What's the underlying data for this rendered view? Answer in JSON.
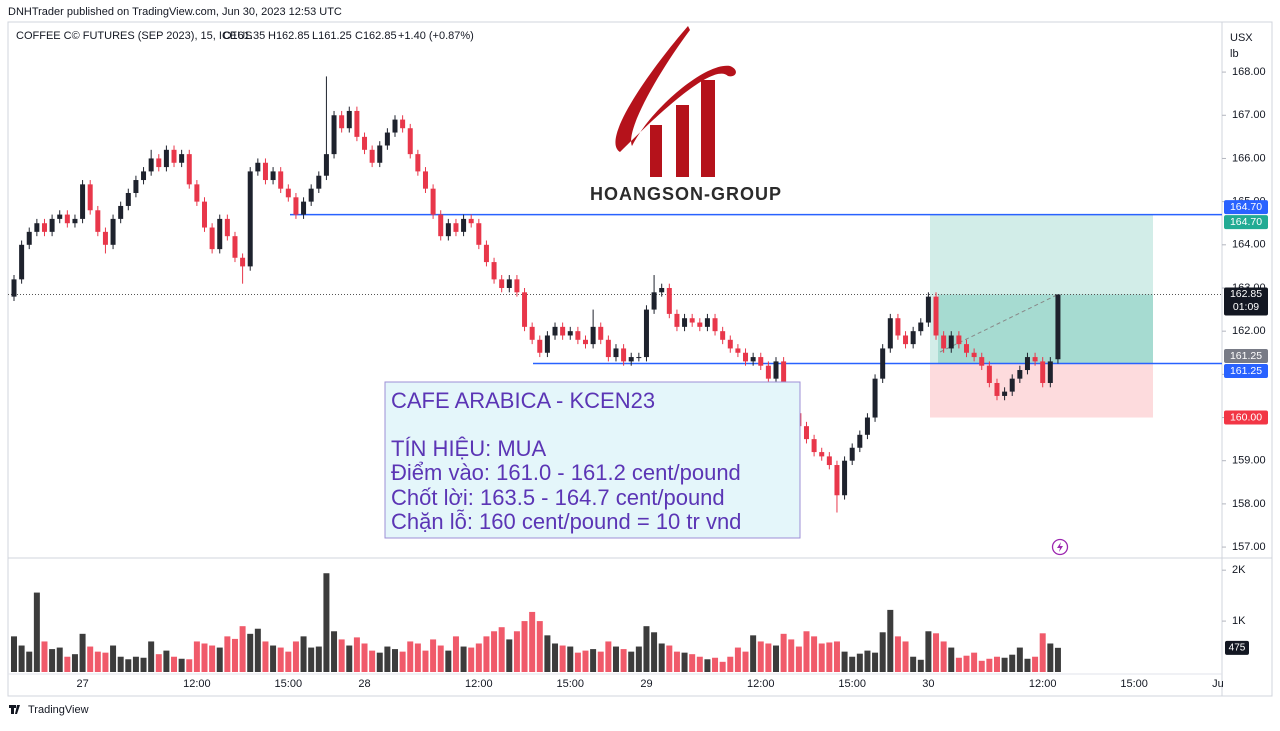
{
  "header": {
    "publisher": "DNHTrader published on TradingView.com, Jun 30, 2023 12:53 UTC",
    "footer": "TradingView"
  },
  "chart_data": {
    "type": "candlestick",
    "legend": {
      "symbol": "COFFEE C© FUTURES (SEP 2023), 15, ICEUS",
      "open": "O161.35",
      "high": "H162.85",
      "low": "L161.25",
      "close": "C162.85",
      "change": "+1.40 (+0.87%)"
    },
    "currency": "USX",
    "unit": "lb",
    "logo": "HOANGSON-GROUP",
    "categories": [
      null,
      null,
      null,
      null,
      null,
      null,
      null,
      null,
      null,
      "27",
      null,
      null,
      null,
      null,
      null,
      null,
      null,
      null,
      null,
      null,
      null,
      null,
      null,
      null,
      "12:00",
      null,
      null,
      null,
      null,
      null,
      null,
      null,
      null,
      null,
      null,
      null,
      "15:00",
      null,
      null,
      null,
      null,
      null,
      null,
      null,
      null,
      null,
      "28",
      null,
      null,
      null,
      null,
      null,
      null,
      null,
      null,
      null,
      null,
      null,
      null,
      null,
      null,
      "12:00",
      null,
      null,
      null,
      null,
      null,
      null,
      null,
      null,
      null,
      null,
      null,
      "15:00",
      null,
      null,
      null,
      null,
      null,
      null,
      null,
      null,
      null,
      "29",
      null,
      null,
      null,
      null,
      null,
      null,
      null,
      null,
      null,
      null,
      null,
      null,
      null,
      null,
      "12:00",
      null,
      null,
      null,
      null,
      null,
      null,
      null,
      null,
      null,
      null,
      null,
      "15:00",
      null,
      null,
      null,
      null,
      null,
      null,
      null,
      null,
      null,
      "30",
      null,
      null,
      null,
      null,
      null,
      null,
      null,
      null,
      null,
      null,
      null,
      null,
      null,
      null,
      "12:00",
      null,
      null,
      null,
      null,
      null,
      null,
      null,
      null,
      null,
      null,
      null,
      "15:00",
      null,
      null,
      null,
      null,
      null,
      null,
      null,
      null,
      null,
      null,
      "Ju"
    ],
    "open": [
      162.8,
      163.2,
      164.0,
      164.3,
      164.5,
      164.3,
      164.6,
      164.7,
      164.5,
      164.6,
      165.4,
      164.8,
      164.3,
      164.0,
      164.6,
      164.9,
      165.2,
      165.5,
      165.7,
      166.0,
      165.8,
      166.2,
      165.9,
      166.1,
      165.4,
      165.0,
      164.4,
      163.9,
      164.6,
      164.2,
      163.7,
      163.5,
      165.7,
      165.9,
      165.5,
      165.7,
      165.3,
      165.1,
      164.7,
      165.0,
      165.3,
      165.6,
      166.1,
      167.0,
      166.7,
      167.1,
      166.5,
      166.2,
      165.9,
      166.3,
      166.6,
      166.9,
      166.7,
      166.1,
      165.7,
      165.3,
      164.7,
      164.2,
      164.5,
      164.3,
      164.6,
      164.5,
      164.0,
      163.6,
      163.2,
      163.0,
      163.2,
      162.9,
      162.1,
      161.8,
      161.5,
      161.9,
      162.1,
      161.9,
      162.0,
      161.8,
      161.7,
      162.1,
      161.8,
      161.4,
      161.6,
      161.3,
      161.4,
      161.4,
      162.5,
      162.9,
      163.0,
      162.4,
      162.1,
      162.3,
      162.2,
      162.1,
      162.3,
      162.0,
      161.8,
      161.6,
      161.5,
      161.3,
      161.4,
      161.2,
      160.9,
      161.3,
      160.6,
      160.1,
      159.8,
      159.5,
      159.2,
      159.1,
      158.9,
      158.2,
      159.0,
      159.3,
      159.6,
      160.0,
      160.9,
      161.6,
      162.3,
      161.9,
      161.7,
      162.0,
      162.2,
      162.8,
      161.9,
      161.6,
      161.9,
      161.7,
      161.5,
      161.4,
      161.2,
      160.8,
      160.5,
      160.6,
      160.9,
      161.1,
      161.4,
      161.3,
      160.8,
      161.35,
      null,
      null,
      null,
      null,
      null,
      null,
      null,
      null,
      null,
      null,
      null,
      null,
      null,
      null,
      null,
      null,
      null,
      null,
      null,
      null,
      null
    ],
    "high": [
      163.3,
      164.1,
      164.4,
      164.6,
      164.6,
      164.7,
      164.8,
      164.8,
      164.7,
      165.5,
      165.5,
      164.9,
      164.4,
      164.7,
      165.0,
      165.3,
      165.6,
      165.8,
      166.2,
      166.1,
      166.3,
      166.3,
      166.2,
      166.2,
      165.5,
      165.1,
      164.5,
      164.7,
      164.7,
      164.3,
      163.8,
      165.8,
      166.0,
      166.0,
      165.8,
      165.8,
      165.4,
      165.2,
      165.1,
      165.4,
      165.7,
      167.9,
      167.1,
      167.1,
      167.2,
      167.2,
      166.6,
      166.3,
      166.4,
      166.7,
      167.0,
      167.0,
      166.8,
      166.2,
      165.8,
      165.4,
      164.8,
      164.6,
      164.6,
      164.7,
      164.7,
      164.6,
      164.1,
      163.7,
      163.3,
      163.3,
      163.3,
      163.0,
      162.2,
      161.9,
      162.0,
      162.2,
      162.2,
      162.1,
      162.1,
      161.9,
      162.5,
      162.2,
      161.9,
      161.7,
      161.7,
      161.5,
      161.5,
      162.6,
      163.3,
      163.1,
      163.1,
      162.5,
      162.4,
      162.4,
      162.3,
      162.4,
      162.4,
      162.1,
      161.9,
      161.7,
      161.6,
      161.5,
      161.5,
      161.3,
      161.4,
      161.4,
      160.7,
      160.2,
      159.9,
      159.6,
      159.3,
      159.2,
      159.0,
      159.1,
      159.4,
      159.7,
      160.1,
      161.0,
      161.7,
      162.4,
      162.4,
      162.0,
      162.1,
      162.3,
      162.9,
      162.9,
      162.0,
      162.0,
      162.0,
      161.8,
      161.6,
      161.5,
      161.3,
      160.9,
      160.7,
      161.0,
      161.2,
      161.5,
      161.5,
      161.4,
      161.4,
      162.85,
      null,
      null,
      null,
      null,
      null,
      null,
      null,
      null,
      null,
      null,
      null,
      null,
      null,
      null,
      null,
      null,
      null,
      null,
      null,
      null,
      null
    ],
    "low": [
      162.7,
      163.1,
      163.9,
      164.2,
      164.2,
      164.2,
      164.5,
      164.4,
      164.4,
      164.5,
      164.7,
      164.2,
      163.8,
      163.9,
      164.5,
      164.8,
      165.1,
      165.4,
      165.6,
      165.7,
      165.7,
      165.8,
      165.8,
      165.3,
      164.9,
      164.3,
      163.8,
      163.8,
      164.1,
      163.6,
      163.1,
      163.4,
      165.6,
      165.4,
      165.4,
      165.2,
      165.0,
      164.6,
      164.6,
      164.9,
      165.2,
      165.5,
      166.0,
      166.6,
      166.6,
      166.4,
      166.1,
      165.8,
      165.8,
      166.2,
      166.5,
      166.6,
      166.0,
      165.6,
      165.2,
      164.6,
      164.1,
      164.1,
      164.2,
      164.2,
      164.4,
      163.9,
      163.5,
      163.1,
      162.9,
      162.9,
      162.8,
      162.0,
      161.7,
      161.4,
      161.4,
      161.8,
      161.8,
      161.8,
      161.7,
      161.6,
      161.6,
      161.7,
      161.3,
      161.3,
      161.2,
      161.2,
      161.3,
      161.3,
      162.4,
      162.8,
      162.3,
      162.0,
      162.0,
      162.1,
      162.0,
      162.0,
      161.9,
      161.7,
      161.5,
      161.4,
      161.2,
      161.2,
      161.1,
      160.8,
      160.8,
      160.5,
      160.0,
      159.7,
      159.4,
      159.1,
      159.0,
      158.8,
      157.8,
      158.1,
      158.9,
      159.2,
      159.5,
      159.9,
      160.8,
      161.5,
      161.8,
      161.6,
      161.6,
      161.9,
      162.1,
      161.8,
      161.5,
      161.5,
      161.6,
      161.4,
      161.3,
      161.1,
      160.7,
      160.4,
      160.4,
      160.5,
      160.8,
      161.0,
      161.2,
      160.7,
      160.7,
      161.25,
      null,
      null,
      null,
      null,
      null,
      null,
      null,
      null,
      null,
      null,
      null,
      null,
      null,
      null,
      null,
      null,
      null,
      null,
      null,
      null,
      null
    ],
    "close": [
      163.2,
      164.0,
      164.3,
      164.5,
      164.3,
      164.6,
      164.7,
      164.5,
      164.6,
      165.4,
      164.8,
      164.3,
      164.0,
      164.6,
      164.9,
      165.2,
      165.5,
      165.7,
      166.0,
      165.8,
      166.2,
      165.9,
      166.1,
      165.4,
      165.0,
      164.4,
      163.9,
      164.6,
      164.2,
      163.7,
      163.5,
      165.7,
      165.9,
      165.5,
      165.7,
      165.3,
      165.1,
      164.7,
      165.0,
      165.3,
      165.6,
      166.1,
      167.0,
      166.7,
      167.1,
      166.5,
      166.2,
      165.9,
      166.3,
      166.6,
      166.9,
      166.7,
      166.1,
      165.7,
      165.3,
      164.7,
      164.2,
      164.5,
      164.3,
      164.6,
      164.5,
      164.0,
      163.6,
      163.2,
      163.0,
      163.2,
      162.9,
      162.1,
      161.8,
      161.5,
      161.9,
      162.1,
      161.9,
      162.0,
      161.8,
      161.7,
      162.1,
      161.8,
      161.4,
      161.6,
      161.3,
      161.4,
      161.4,
      162.5,
      162.9,
      163.0,
      162.4,
      162.1,
      162.3,
      162.2,
      162.1,
      162.3,
      162.0,
      161.8,
      161.6,
      161.5,
      161.3,
      161.4,
      161.2,
      160.9,
      161.3,
      160.6,
      160.1,
      159.8,
      159.5,
      159.2,
      159.1,
      158.9,
      158.2,
      159.0,
      159.3,
      159.6,
      160.0,
      160.9,
      161.6,
      162.3,
      161.9,
      161.7,
      162.0,
      162.2,
      162.8,
      161.9,
      161.6,
      161.9,
      161.7,
      161.5,
      161.4,
      161.2,
      160.8,
      160.5,
      160.6,
      160.9,
      161.1,
      161.4,
      161.3,
      160.8,
      161.3,
      162.85,
      null,
      null,
      null,
      null,
      null,
      null,
      null,
      null,
      null,
      null,
      null,
      null,
      null,
      null,
      null,
      null,
      null,
      null,
      null,
      null,
      null
    ],
    "volume": [
      700,
      520,
      400,
      1560,
      600,
      450,
      480,
      300,
      350,
      750,
      500,
      400,
      380,
      520,
      300,
      250,
      300,
      280,
      600,
      350,
      420,
      300,
      260,
      250,
      600,
      560,
      520,
      480,
      700,
      650,
      900,
      750,
      850,
      600,
      520,
      480,
      400,
      600,
      700,
      480,
      500,
      1940,
      800,
      640,
      520,
      680,
      560,
      420,
      380,
      500,
      450,
      400,
      600,
      560,
      420,
      640,
      520,
      420,
      700,
      500,
      480,
      560,
      700,
      800,
      880,
      640,
      800,
      1000,
      1180,
      1000,
      720,
      560,
      520,
      500,
      380,
      420,
      450,
      400,
      600,
      500,
      450,
      400,
      500,
      900,
      780,
      560,
      520,
      400,
      380,
      350,
      300,
      250,
      280,
      200,
      300,
      480,
      400,
      720,
      600,
      560,
      520,
      750,
      640,
      500,
      800,
      700,
      560,
      580,
      600,
      400,
      300,
      360,
      420,
      380,
      780,
      1220,
      700,
      600,
      300,
      240,
      800,
      760,
      600,
      480,
      280,
      320,
      380,
      220,
      260,
      300,
      280,
      340,
      480,
      260,
      300,
      760,
      560,
      475,
      null,
      null,
      null,
      null,
      null,
      null,
      null,
      null,
      null,
      null,
      null,
      null,
      null,
      null,
      null,
      null,
      null,
      null,
      null,
      null,
      null
    ],
    "up_color": "#1e222d",
    "down_color": "#e8374a",
    "volume_up_color": "#3c3c3c",
    "volume_down_color": "#f05a6a",
    "ylim": [
      156.77,
      169.16
    ],
    "yticks": [
      {
        "value": 157,
        "label": "157.00"
      },
      {
        "value": 158,
        "label": "158.00"
      },
      {
        "value": 159,
        "label": "159.00"
      },
      {
        "value": 160,
        "label": "160.00"
      },
      {
        "value": 161,
        "label": "161.00"
      },
      {
        "value": 162,
        "label": "162.00"
      },
      {
        "value": 163,
        "label": "163.00"
      },
      {
        "value": 164,
        "label": "164.00"
      },
      {
        "value": 165,
        "label": "165.00"
      },
      {
        "value": 166,
        "label": "166.00"
      },
      {
        "value": 167,
        "label": "167.00"
      },
      {
        "value": 168,
        "label": "168.00"
      }
    ],
    "volume_ylim": [
      0,
      2200
    ],
    "volume_ticks": [
      {
        "value": 1000,
        "label": "1K"
      },
      {
        "value": 2000,
        "label": "2K"
      }
    ],
    "levels": [
      {
        "value": 164.7,
        "color": "#2962ff"
      },
      {
        "value": 161.25,
        "color": "#2962ff"
      }
    ],
    "position": {
      "target": 164.7,
      "entry": 161.25,
      "stop": 160.0
    },
    "price_labels": [
      {
        "value": 164.7,
        "label": "164.70",
        "color": "#2962ff"
      },
      {
        "value": 164.7,
        "label": "164.70",
        "color": "#22ab94"
      },
      {
        "value": 162.85,
        "label": "162.85",
        "color": "#131722",
        "countdown": "01:09"
      },
      {
        "value": 161.25,
        "label": "161.25",
        "color": "#787b86"
      },
      {
        "value": 161.25,
        "label": "161.25",
        "color": "#2962ff"
      },
      {
        "value": 160.0,
        "label": "160.00",
        "color": "#f23645"
      }
    ],
    "annotation": {
      "title": "CAFE ARABICA - KCEN23",
      "lines": [
        "TÍN HIỆU: MUA",
        "Điểm vào: 161.0 - 161.2 cent/pound",
        "Chốt lời: 163.5 - 164.7 cent/pound",
        "Chặn lỗ: 160 cent/pound = 10 tr vnd"
      ]
    }
  }
}
